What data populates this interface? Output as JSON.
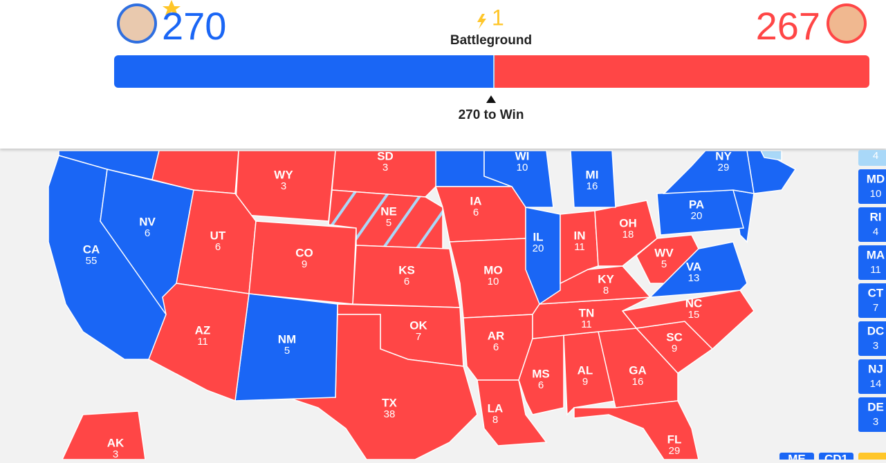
{
  "header": {
    "dem": {
      "votes": 270
    },
    "battleground": {
      "votes": 1,
      "label": "Battleground"
    },
    "rep": {
      "votes": 267
    },
    "threshold_label": "270 to Win"
  },
  "colors": {
    "D": "#1a66f5",
    "R": "#ff4646",
    "lean": "#a9d8f8",
    "battleground": "#ffc629"
  },
  "states": [
    {
      "abbr": "CA",
      "votes": 55,
      "party": "D"
    },
    {
      "abbr": "NV",
      "votes": 6,
      "party": "D"
    },
    {
      "abbr": "WY",
      "votes": 3,
      "party": "R"
    },
    {
      "abbr": "UT",
      "votes": 6,
      "party": "R"
    },
    {
      "abbr": "CO",
      "votes": 9,
      "party": "R"
    },
    {
      "abbr": "SD",
      "votes": 3,
      "party": "R"
    },
    {
      "abbr": "NE",
      "votes": 5,
      "party": "split"
    },
    {
      "abbr": "KS",
      "votes": 6,
      "party": "R"
    },
    {
      "abbr": "OK",
      "votes": 7,
      "party": "R"
    },
    {
      "abbr": "TX",
      "votes": 38,
      "party": "R"
    },
    {
      "abbr": "NM",
      "votes": 5,
      "party": "D"
    },
    {
      "abbr": "AZ",
      "votes": 11,
      "party": "R"
    },
    {
      "abbr": "WI",
      "votes": 10,
      "party": "D"
    },
    {
      "abbr": "IA",
      "votes": 6,
      "party": "R"
    },
    {
      "abbr": "MO",
      "votes": 10,
      "party": "R"
    },
    {
      "abbr": "AR",
      "votes": 6,
      "party": "R"
    },
    {
      "abbr": "LA",
      "votes": 8,
      "party": "R"
    },
    {
      "abbr": "MS",
      "votes": 6,
      "party": "R"
    },
    {
      "abbr": "AL",
      "votes": 9,
      "party": "R"
    },
    {
      "abbr": "GA",
      "votes": 16,
      "party": "R"
    },
    {
      "abbr": "FL",
      "votes": 29,
      "party": "R"
    },
    {
      "abbr": "SC",
      "votes": 9,
      "party": "R"
    },
    {
      "abbr": "NC",
      "votes": 15,
      "party": "R"
    },
    {
      "abbr": "TN",
      "votes": 11,
      "party": "R"
    },
    {
      "abbr": "KY",
      "votes": 8,
      "party": "R"
    },
    {
      "abbr": "IL",
      "votes": 20,
      "party": "D"
    },
    {
      "abbr": "IN",
      "votes": 11,
      "party": "R"
    },
    {
      "abbr": "OH",
      "votes": 18,
      "party": "R"
    },
    {
      "abbr": "MI",
      "votes": 16,
      "party": "D"
    },
    {
      "abbr": "WV",
      "votes": 5,
      "party": "R"
    },
    {
      "abbr": "VA",
      "votes": 13,
      "party": "D"
    },
    {
      "abbr": "PA",
      "votes": 20,
      "party": "D"
    },
    {
      "abbr": "NY",
      "votes": 29,
      "party": "D"
    },
    {
      "abbr": "AK",
      "votes": 3,
      "party": "R"
    }
  ],
  "side_list": [
    {
      "votes": 4,
      "party": "lean"
    },
    {
      "abbr": "MD",
      "votes": 10,
      "party": "D"
    },
    {
      "abbr": "RI",
      "votes": 4,
      "party": "D"
    },
    {
      "abbr": "MA",
      "votes": 11,
      "party": "D"
    },
    {
      "abbr": "CT",
      "votes": 7,
      "party": "D"
    },
    {
      "abbr": "DC",
      "votes": 3,
      "party": "D"
    },
    {
      "abbr": "NJ",
      "votes": 14,
      "party": "D"
    },
    {
      "abbr": "DE",
      "votes": 3,
      "party": "D"
    }
  ],
  "bottom_list": [
    {
      "abbr": "ME",
      "party": "D"
    },
    {
      "abbr": "CD1",
      "party": "D"
    }
  ]
}
